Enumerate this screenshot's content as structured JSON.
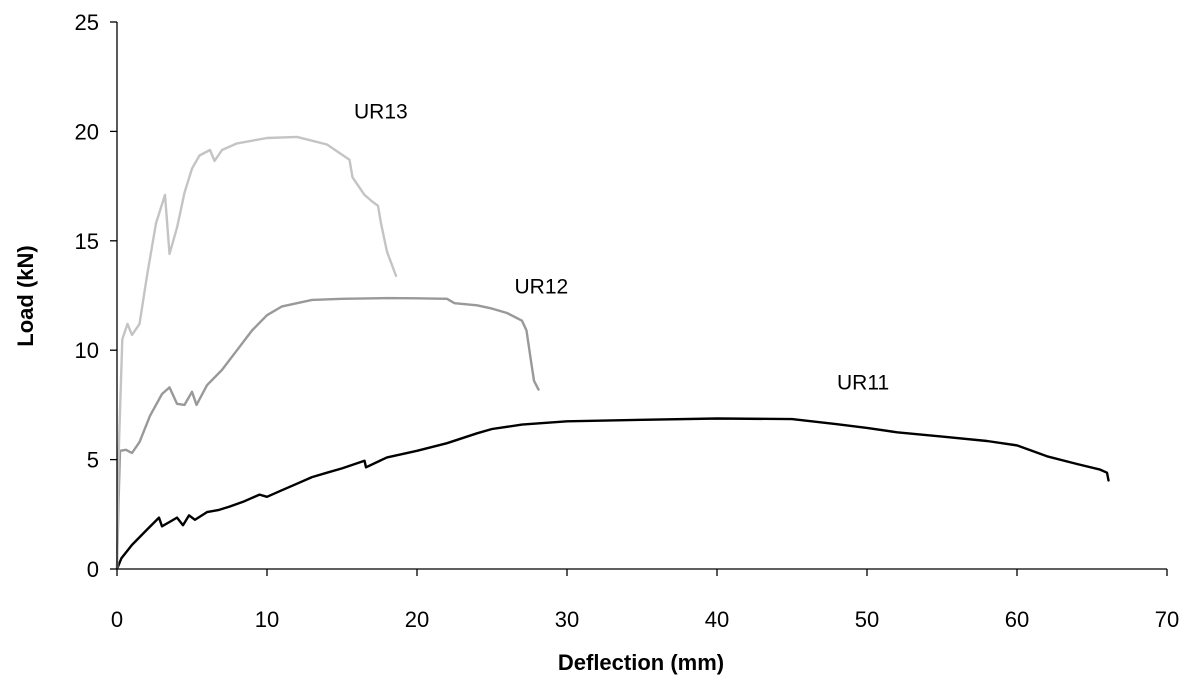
{
  "chart_data": {
    "type": "line",
    "title": "",
    "xlabel": "Deflection (mm)",
    "ylabel": "Load (kN)",
    "xlim": [
      0,
      70
    ],
    "ylim": [
      0,
      25
    ],
    "xticks": [
      0,
      10,
      20,
      30,
      40,
      50,
      60,
      70
    ],
    "yticks": [
      0,
      5,
      10,
      15,
      20,
      25
    ],
    "grid": false,
    "legend": "none",
    "series": [
      {
        "name": "UR11",
        "color": "#000000",
        "points": [
          [
            0,
            0
          ],
          [
            0.3,
            0.5
          ],
          [
            1,
            1.1
          ],
          [
            2,
            1.8
          ],
          [
            2.8,
            2.35
          ],
          [
            3,
            1.95
          ],
          [
            3.5,
            2.15
          ],
          [
            4,
            2.35
          ],
          [
            4.4,
            2.0
          ],
          [
            4.8,
            2.45
          ],
          [
            5.2,
            2.25
          ],
          [
            6,
            2.6
          ],
          [
            6.8,
            2.7
          ],
          [
            7.5,
            2.85
          ],
          [
            8.5,
            3.1
          ],
          [
            9.5,
            3.4
          ],
          [
            10,
            3.3
          ],
          [
            11,
            3.6
          ],
          [
            12,
            3.9
          ],
          [
            13,
            4.2
          ],
          [
            14,
            4.4
          ],
          [
            15,
            4.6
          ],
          [
            16.5,
            4.95
          ],
          [
            16.6,
            4.65
          ],
          [
            18,
            5.1
          ],
          [
            20,
            5.4
          ],
          [
            22,
            5.75
          ],
          [
            24,
            6.2
          ],
          [
            25,
            6.4
          ],
          [
            27,
            6.6
          ],
          [
            30,
            6.75
          ],
          [
            35,
            6.82
          ],
          [
            40,
            6.88
          ],
          [
            45,
            6.85
          ],
          [
            48,
            6.62
          ],
          [
            50,
            6.45
          ],
          [
            52,
            6.25
          ],
          [
            55,
            6.05
          ],
          [
            58,
            5.85
          ],
          [
            60,
            5.65
          ],
          [
            62,
            5.15
          ],
          [
            64,
            4.8
          ],
          [
            65.5,
            4.55
          ],
          [
            66,
            4.4
          ],
          [
            66.1,
            4.05
          ]
        ]
      },
      {
        "name": "UR12",
        "color": "#999999",
        "points": [
          [
            0,
            0
          ],
          [
            0.1,
            3.0
          ],
          [
            0.2,
            5.4
          ],
          [
            0.6,
            5.45
          ],
          [
            1,
            5.3
          ],
          [
            1.5,
            5.8
          ],
          [
            2.2,
            7.0
          ],
          [
            3,
            8.0
          ],
          [
            3.5,
            8.3
          ],
          [
            4,
            7.55
          ],
          [
            4.5,
            7.5
          ],
          [
            5,
            8.1
          ],
          [
            5.3,
            7.5
          ],
          [
            6,
            8.4
          ],
          [
            7,
            9.1
          ],
          [
            8,
            10.0
          ],
          [
            9,
            10.9
          ],
          [
            10,
            11.6
          ],
          [
            11,
            12.0
          ],
          [
            13,
            12.3
          ],
          [
            15,
            12.35
          ],
          [
            18,
            12.38
          ],
          [
            20,
            12.37
          ],
          [
            22,
            12.35
          ],
          [
            22.5,
            12.15
          ],
          [
            24,
            12.05
          ],
          [
            25,
            11.9
          ],
          [
            26,
            11.7
          ],
          [
            27,
            11.35
          ],
          [
            27.3,
            10.9
          ],
          [
            27.6,
            9.5
          ],
          [
            27.8,
            8.6
          ],
          [
            28.1,
            8.2
          ]
        ]
      },
      {
        "name": "UR13",
        "color": "#c4c4c4",
        "points": [
          [
            0,
            0
          ],
          [
            0.1,
            5.0
          ],
          [
            0.35,
            10.5
          ],
          [
            0.7,
            11.2
          ],
          [
            1,
            10.7
          ],
          [
            1.5,
            11.2
          ],
          [
            2,
            13.4
          ],
          [
            2.6,
            15.8
          ],
          [
            3.2,
            17.1
          ],
          [
            3.5,
            14.4
          ],
          [
            4,
            15.6
          ],
          [
            4.5,
            17.2
          ],
          [
            5,
            18.3
          ],
          [
            5.5,
            18.9
          ],
          [
            6.2,
            19.15
          ],
          [
            6.5,
            18.65
          ],
          [
            7,
            19.15
          ],
          [
            8,
            19.45
          ],
          [
            10,
            19.7
          ],
          [
            12,
            19.75
          ],
          [
            14,
            19.4
          ],
          [
            15.5,
            18.7
          ],
          [
            15.7,
            17.9
          ],
          [
            16,
            17.6
          ],
          [
            16.5,
            17.1
          ],
          [
            17,
            16.8
          ],
          [
            17.4,
            16.6
          ],
          [
            17.6,
            15.8
          ],
          [
            18,
            14.5
          ],
          [
            18.6,
            13.4
          ]
        ]
      }
    ],
    "annotations": [
      {
        "text": "UR13",
        "x": 15.8,
        "y": 20.6
      },
      {
        "text": "UR12",
        "x": 26.5,
        "y": 12.6
      },
      {
        "text": "UR11",
        "x": 48.0,
        "y": 8.2
      }
    ]
  }
}
